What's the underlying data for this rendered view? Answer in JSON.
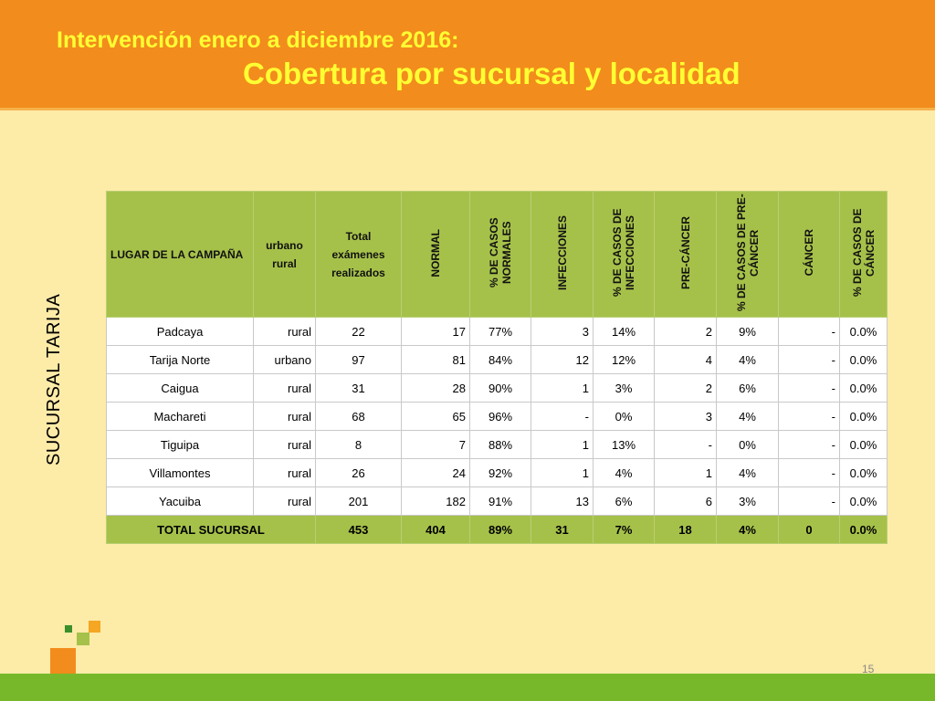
{
  "header": {
    "line1": "Intervención enero a diciembre 2016:",
    "line2": "Cobertura por sucursal y localidad"
  },
  "side_label": "SUCURSAL  TARIJA",
  "table": {
    "headers": {
      "lugar": "LUGAR DE LA CAMPAÑA",
      "tipo": "urbano rural",
      "total": "Total exámenes realizados",
      "normal": "NORMAL",
      "pct_normal": "% DE CASOS NORMALES",
      "infecciones": "INFECCIONES",
      "pct_infecciones": "% DE CASOS DE INFECCIONES",
      "precancer": "PRE-CÁNCER",
      "pct_precancer": "% DE CASOS DE PRE-CÁNCER",
      "cancer": "CÁNCER",
      "pct_cancer": "% DE CASOS DE CÁNCER"
    },
    "rows": [
      [
        "Padcaya",
        "rural",
        "22",
        "17",
        "77%",
        "3",
        "14%",
        "2",
        "9%",
        "-",
        "0.0%"
      ],
      [
        "Tarija Norte",
        "urbano",
        "97",
        "81",
        "84%",
        "12",
        "12%",
        "4",
        "4%",
        "-",
        "0.0%"
      ],
      [
        "Caigua",
        "rural",
        "31",
        "28",
        "90%",
        "1",
        "3%",
        "2",
        "6%",
        "-",
        "0.0%"
      ],
      [
        "Machareti",
        "rural",
        "68",
        "65",
        "96%",
        "-",
        "0%",
        "3",
        "4%",
        "-",
        "0.0%"
      ],
      [
        "Tiguipa",
        "rural",
        "8",
        "7",
        "88%",
        "1",
        "13%",
        "-",
        "0%",
        "-",
        "0.0%"
      ],
      [
        "Villamontes",
        "rural",
        "26",
        "24",
        "92%",
        "1",
        "4%",
        "1",
        "4%",
        "-",
        "0.0%"
      ],
      [
        "Yacuiba",
        "rural",
        "201",
        "182",
        "91%",
        "13",
        "6%",
        "6",
        "3%",
        "-",
        "0.0%"
      ]
    ],
    "total": [
      "TOTAL SUCURSAL",
      "453",
      "404",
      "89%",
      "31",
      "7%",
      "18",
      "4%",
      "0",
      "0.0%"
    ]
  },
  "page_number": "15",
  "colors": {
    "background": "#fdeba8",
    "header": "#f28c1c",
    "title_text": "#ffff33",
    "table_header": "#a6c14a",
    "bottom_bar": "#76b82a"
  }
}
